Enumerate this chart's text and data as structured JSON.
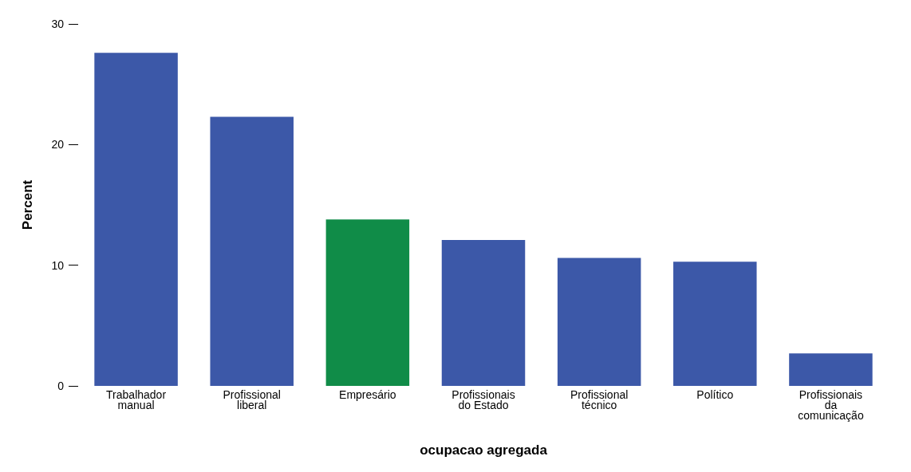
{
  "chart_data": {
    "type": "bar",
    "xlabel": "ocupacao agregada",
    "ylabel": "Percent",
    "categories": [
      "Trabalhador\nmanual",
      "Profissional\nliberal",
      "Empresário",
      "Profissionais\ndo Estado",
      "Profissional\ntécnico",
      "Político",
      "Profissionais\nda\ncomunicação"
    ],
    "values": [
      27.6,
      22.3,
      13.8,
      12.1,
      10.6,
      10.3,
      2.7
    ],
    "colors": [
      "#3c58a8",
      "#3c58a8",
      "#108c48",
      "#3c58a8",
      "#3c58a8",
      "#3c58a8",
      "#3c58a8"
    ],
    "ylim": [
      0,
      30
    ],
    "yticks": [
      0,
      10,
      20,
      30
    ],
    "grid": false
  }
}
